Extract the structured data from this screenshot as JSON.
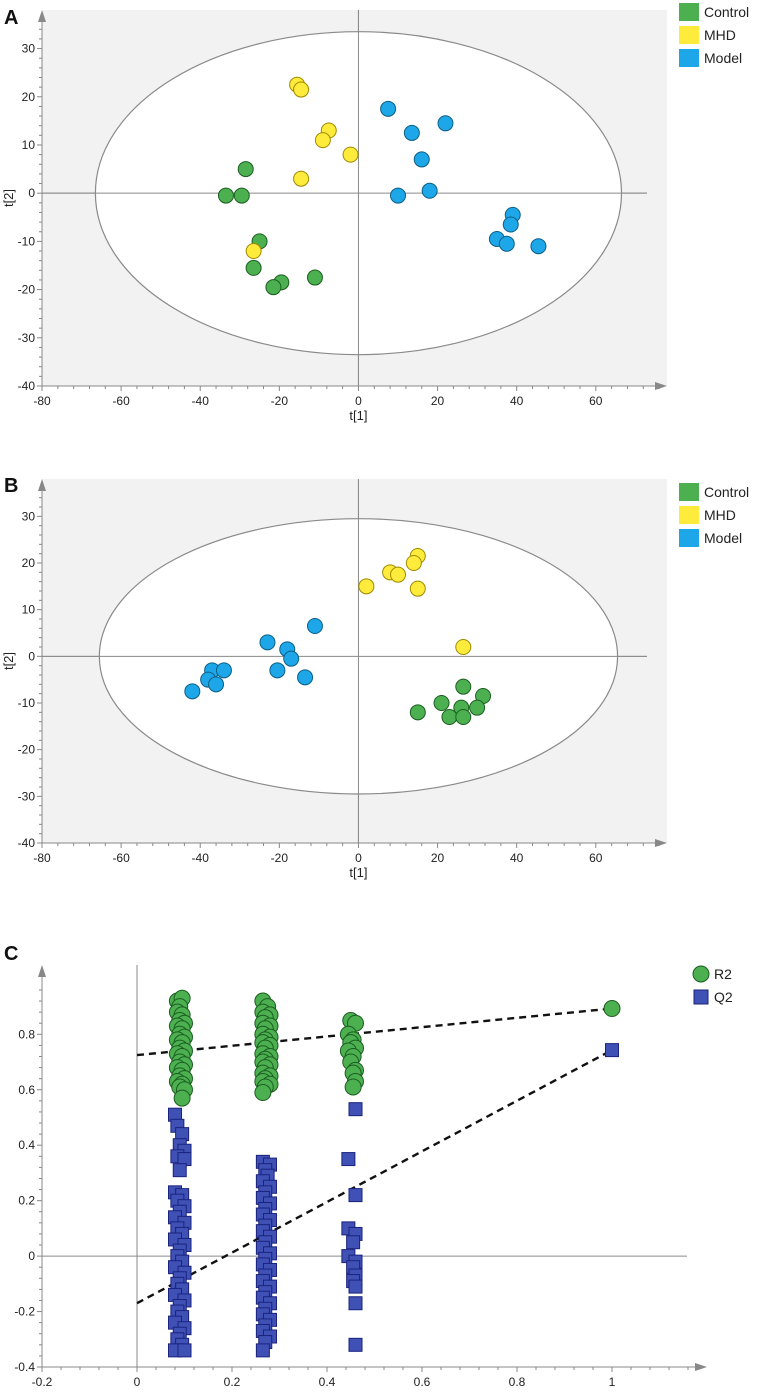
{
  "chart_data": [
    {
      "panel": "A",
      "type": "scatter",
      "title": "",
      "xlabel": "t[1]",
      "ylabel": "t[2]",
      "xlim": [
        -80,
        78
      ],
      "ylim": [
        -40,
        38
      ],
      "xticks": [
        -80,
        -60,
        -40,
        -20,
        0,
        20,
        40,
        60
      ],
      "yticks": [
        -40,
        -30,
        -20,
        -10,
        0,
        10,
        20,
        30
      ],
      "ellipse": {
        "cx": 0,
        "cy": 0,
        "rx": 66.5,
        "ry": 33.5
      },
      "legend": "top-right",
      "series": [
        {
          "name": "Control",
          "color": "#4caf50",
          "points": [
            [
              -28.5,
              5
            ],
            [
              -33.5,
              -0.5
            ],
            [
              -29.5,
              -0.5
            ],
            [
              -25,
              -10
            ],
            [
              -26.5,
              -15.5
            ],
            [
              -19.5,
              -18.5
            ],
            [
              -21.5,
              -19.5
            ],
            [
              -11,
              -17.5
            ]
          ]
        },
        {
          "name": "MHD",
          "color": "#ffeb3b",
          "points": [
            [
              -15.5,
              22.5
            ],
            [
              -14.5,
              21.5
            ],
            [
              -7.5,
              13
            ],
            [
              -9,
              11
            ],
            [
              -2,
              8
            ],
            [
              -14.5,
              3
            ],
            [
              -26.5,
              -12
            ]
          ]
        },
        {
          "name": "Model",
          "color": "#1ea7e8",
          "points": [
            [
              7.5,
              17.5
            ],
            [
              22,
              14.5
            ],
            [
              13.5,
              12.5
            ],
            [
              16,
              7
            ],
            [
              10,
              -0.5
            ],
            [
              18,
              0.5
            ],
            [
              39,
              -4.5
            ],
            [
              38.5,
              -6.5
            ],
            [
              35,
              -9.5
            ],
            [
              37.5,
              -10.5
            ],
            [
              45.5,
              -11
            ]
          ]
        }
      ]
    },
    {
      "panel": "B",
      "type": "scatter",
      "title": "",
      "xlabel": "t[1]",
      "ylabel": "t[2]",
      "xlim": [
        -80,
        78
      ],
      "ylim": [
        -40,
        38
      ],
      "xticks": [
        -80,
        -60,
        -40,
        -20,
        0,
        20,
        40,
        60
      ],
      "yticks": [
        -40,
        -30,
        -20,
        -10,
        0,
        10,
        20,
        30
      ],
      "ellipse": {
        "cx": 0,
        "cy": 0,
        "rx": 65.5,
        "ry": 29.5
      },
      "legend": "top-right",
      "series": [
        {
          "name": "Control",
          "color": "#4caf50",
          "points": [
            [
              26.5,
              -6.5
            ],
            [
              31.5,
              -8.5
            ],
            [
              21,
              -10
            ],
            [
              26,
              -11
            ],
            [
              30,
              -11
            ],
            [
              15,
              -12
            ],
            [
              23,
              -13
            ],
            [
              26.5,
              -13
            ]
          ]
        },
        {
          "name": "MHD",
          "color": "#ffeb3b",
          "points": [
            [
              15,
              21.5
            ],
            [
              14,
              20
            ],
            [
              8,
              18
            ],
            [
              10,
              17.5
            ],
            [
              2,
              15
            ],
            [
              15,
              14.5
            ],
            [
              26.5,
              2
            ]
          ]
        },
        {
          "name": "Model",
          "color": "#1ea7e8",
          "points": [
            [
              -11,
              6.5
            ],
            [
              -23,
              3
            ],
            [
              -18,
              1.5
            ],
            [
              -17,
              -0.5
            ],
            [
              -37,
              -3
            ],
            [
              -34,
              -3
            ],
            [
              -20.5,
              -3
            ],
            [
              -38,
              -5
            ],
            [
              -36,
              -6
            ],
            [
              -13.5,
              -4.5
            ],
            [
              -42,
              -7.5
            ]
          ]
        }
      ]
    },
    {
      "panel": "C",
      "type": "scatter",
      "title": "",
      "xlabel": "",
      "ylabel": "",
      "xlim": [
        -0.2,
        1.2
      ],
      "ylim": [
        -0.4,
        1.05
      ],
      "xticks": [
        -0.2,
        0,
        0.2,
        0.4,
        0.6,
        0.8,
        1
      ],
      "xticklabels": [
        "-0.2",
        "0",
        "0.2",
        "0.4",
        "0.6",
        "0.8",
        "1"
      ],
      "yticks": [
        -0.4,
        -0.2,
        0,
        0.2,
        0.4,
        0.6,
        0.8
      ],
      "yticklabels": [
        "-0.4",
        "-0.2",
        "0",
        "0.2",
        "0.4",
        "0.6",
        "0.8"
      ],
      "legend": "top-right",
      "series": [
        {
          "name": "R2",
          "marker": "circle",
          "color": "#4caf50",
          "points": [
            [
              0.085,
              0.92
            ],
            [
              0.095,
              0.93
            ],
            [
              0.09,
              0.9
            ],
            [
              0.085,
              0.88
            ],
            [
              0.095,
              0.87
            ],
            [
              0.09,
              0.85
            ],
            [
              0.1,
              0.84
            ],
            [
              0.085,
              0.83
            ],
            [
              0.095,
              0.82
            ],
            [
              0.09,
              0.8
            ],
            [
              0.1,
              0.79
            ],
            [
              0.085,
              0.78
            ],
            [
              0.095,
              0.77
            ],
            [
              0.09,
              0.75
            ],
            [
              0.1,
              0.74
            ],
            [
              0.085,
              0.73
            ],
            [
              0.095,
              0.72
            ],
            [
              0.09,
              0.7
            ],
            [
              0.1,
              0.69
            ],
            [
              0.085,
              0.68
            ],
            [
              0.095,
              0.67
            ],
            [
              0.09,
              0.65
            ],
            [
              0.1,
              0.64
            ],
            [
              0.085,
              0.63
            ],
            [
              0.095,
              0.62
            ],
            [
              0.09,
              0.61
            ],
            [
              0.1,
              0.6
            ],
            [
              0.095,
              0.57
            ],
            [
              0.265,
              0.92
            ],
            [
              0.275,
              0.9
            ],
            [
              0.265,
              0.88
            ],
            [
              0.28,
              0.87
            ],
            [
              0.27,
              0.86
            ],
            [
              0.265,
              0.84
            ],
            [
              0.28,
              0.83
            ],
            [
              0.27,
              0.82
            ],
            [
              0.265,
              0.8
            ],
            [
              0.28,
              0.79
            ],
            [
              0.27,
              0.78
            ],
            [
              0.265,
              0.77
            ],
            [
              0.28,
              0.76
            ],
            [
              0.27,
              0.75
            ],
            [
              0.265,
              0.73
            ],
            [
              0.28,
              0.72
            ],
            [
              0.27,
              0.71
            ],
            [
              0.265,
              0.7
            ],
            [
              0.28,
              0.69
            ],
            [
              0.27,
              0.68
            ],
            [
              0.265,
              0.66
            ],
            [
              0.28,
              0.65
            ],
            [
              0.27,
              0.64
            ],
            [
              0.265,
              0.63
            ],
            [
              0.28,
              0.62
            ],
            [
              0.27,
              0.61
            ],
            [
              0.265,
              0.59
            ],
            [
              0.45,
              0.85
            ],
            [
              0.46,
              0.84
            ],
            [
              0.445,
              0.8
            ],
            [
              0.455,
              0.78
            ],
            [
              0.45,
              0.77
            ],
            [
              0.46,
              0.75
            ],
            [
              0.445,
              0.74
            ],
            [
              0.455,
              0.72
            ],
            [
              0.45,
              0.7
            ],
            [
              0.46,
              0.67
            ],
            [
              0.455,
              0.66
            ],
            [
              0.46,
              0.63
            ],
            [
              0.455,
              0.61
            ],
            [
              1.0,
              0.893
            ]
          ]
        },
        {
          "name": "Q2",
          "marker": "square",
          "color": "#3f51b5",
          "points": [
            [
              0.08,
              0.51
            ],
            [
              0.085,
              0.47
            ],
            [
              0.095,
              0.44
            ],
            [
              0.09,
              0.4
            ],
            [
              0.1,
              0.38
            ],
            [
              0.085,
              0.36
            ],
            [
              0.1,
              0.35
            ],
            [
              0.09,
              0.31
            ],
            [
              0.08,
              0.23
            ],
            [
              0.095,
              0.22
            ],
            [
              0.085,
              0.2
            ],
            [
              0.1,
              0.18
            ],
            [
              0.09,
              0.16
            ],
            [
              0.08,
              0.14
            ],
            [
              0.1,
              0.12
            ],
            [
              0.085,
              0.1
            ],
            [
              0.095,
              0.08
            ],
            [
              0.08,
              0.06
            ],
            [
              0.1,
              0.04
            ],
            [
              0.09,
              0.02
            ],
            [
              0.085,
              0.0
            ],
            [
              0.095,
              -0.02
            ],
            [
              0.08,
              -0.04
            ],
            [
              0.1,
              -0.06
            ],
            [
              0.09,
              -0.08
            ],
            [
              0.085,
              -0.1
            ],
            [
              0.095,
              -0.12
            ],
            [
              0.08,
              -0.14
            ],
            [
              0.1,
              -0.16
            ],
            [
              0.09,
              -0.18
            ],
            [
              0.085,
              -0.2
            ],
            [
              0.095,
              -0.22
            ],
            [
              0.08,
              -0.24
            ],
            [
              0.1,
              -0.26
            ],
            [
              0.09,
              -0.28
            ],
            [
              0.085,
              -0.3
            ],
            [
              0.095,
              -0.32
            ],
            [
              0.08,
              -0.34
            ],
            [
              0.1,
              -0.34
            ],
            [
              0.265,
              0.34
            ],
            [
              0.28,
              0.33
            ],
            [
              0.27,
              0.31
            ],
            [
              0.275,
              0.29
            ],
            [
              0.265,
              0.27
            ],
            [
              0.28,
              0.25
            ],
            [
              0.27,
              0.23
            ],
            [
              0.265,
              0.21
            ],
            [
              0.28,
              0.19
            ],
            [
              0.27,
              0.17
            ],
            [
              0.265,
              0.15
            ],
            [
              0.28,
              0.13
            ],
            [
              0.27,
              0.11
            ],
            [
              0.265,
              0.09
            ],
            [
              0.28,
              0.07
            ],
            [
              0.27,
              0.05
            ],
            [
              0.265,
              0.03
            ],
            [
              0.28,
              0.01
            ],
            [
              0.27,
              -0.01
            ],
            [
              0.265,
              -0.03
            ],
            [
              0.28,
              -0.05
            ],
            [
              0.27,
              -0.07
            ],
            [
              0.265,
              -0.09
            ],
            [
              0.28,
              -0.11
            ],
            [
              0.27,
              -0.13
            ],
            [
              0.265,
              -0.15
            ],
            [
              0.28,
              -0.17
            ],
            [
              0.27,
              -0.19
            ],
            [
              0.265,
              -0.21
            ],
            [
              0.28,
              -0.23
            ],
            [
              0.27,
              -0.25
            ],
            [
              0.265,
              -0.27
            ],
            [
              0.28,
              -0.29
            ],
            [
              0.27,
              -0.31
            ],
            [
              0.265,
              -0.34
            ],
            [
              0.46,
              0.53
            ],
            [
              0.445,
              0.35
            ],
            [
              0.46,
              0.22
            ],
            [
              0.445,
              0.1
            ],
            [
              0.46,
              0.08
            ],
            [
              0.455,
              0.05
            ],
            [
              0.445,
              0.0
            ],
            [
              0.46,
              -0.02
            ],
            [
              0.455,
              -0.04
            ],
            [
              0.46,
              -0.07
            ],
            [
              0.455,
              -0.09
            ],
            [
              0.46,
              -0.11
            ],
            [
              0.46,
              -0.17
            ],
            [
              0.46,
              -0.32
            ],
            [
              1.0,
              0.743
            ]
          ]
        }
      ],
      "fit_lines": [
        {
          "name": "R2 fit",
          "x": [
            0,
            1
          ],
          "y": [
            0.725,
            0.893
          ]
        },
        {
          "name": "Q2 fit",
          "x": [
            0,
            1
          ],
          "y": [
            -0.17,
            0.743
          ]
        }
      ]
    }
  ]
}
